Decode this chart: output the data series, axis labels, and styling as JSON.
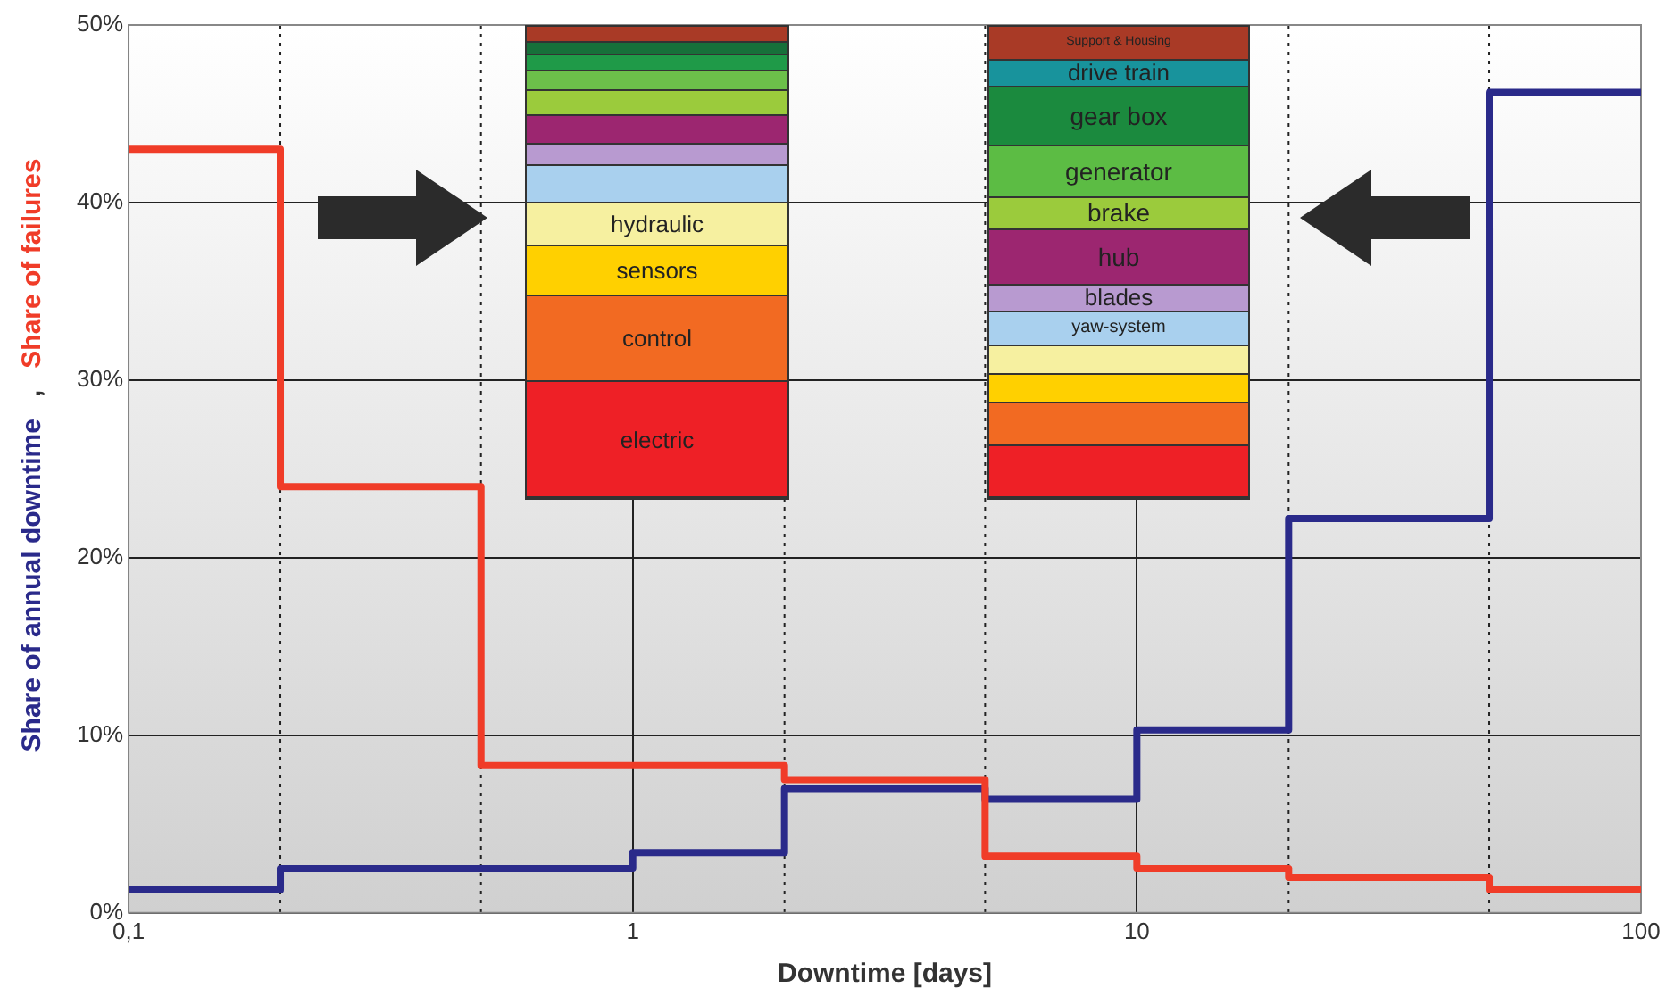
{
  "chart_data": {
    "type": "step",
    "xlabel": "Downtime [days]",
    "ylabel": ",",
    "x": [
      0.1,
      0.2,
      0.5,
      1,
      2,
      5,
      10,
      20,
      50,
      100
    ],
    "series": [
      {
        "name": "Share of failures",
        "color": "#f03c28",
        "values": [
          43,
          24,
          8.3,
          8.3,
          7.5,
          3.2,
          2.5,
          2.0,
          1.3,
          1.3
        ]
      },
      {
        "name": "Share of annual downtime",
        "color": "#2a2a8a",
        "values": [
          1.3,
          2.5,
          2.5,
          3.4,
          7.0,
          6.4,
          10.3,
          22.2,
          46.2,
          46.2
        ]
      }
    ],
    "log": "x",
    "xlim": [
      0.1,
      100
    ],
    "xticks": [
      {
        "value": 0.1,
        "label": "0,1"
      },
      1,
      10,
      100
    ],
    "ylim": [
      0,
      50
    ],
    "yticks": [
      {
        "value": 0,
        "label": "0%"
      },
      {
        "value": 10,
        "label": "10%"
      },
      {
        "value": 20,
        "label": "20%"
      },
      {
        "value": 30,
        "label": "30%"
      },
      {
        "value": 40,
        "label": "40%"
      },
      {
        "value": 50,
        "label": "50%"
      }
    ],
    "grid": true,
    "legend": "left",
    "ref_lines": [
      {
        "axis": "x",
        "value": 0.2,
        "line_style": "dotted"
      },
      {
        "axis": "x",
        "value": 0.5,
        "line_style": "dotted"
      },
      {
        "axis": "x",
        "value": 2,
        "line_style": "dotted"
      },
      {
        "axis": "x",
        "value": 5,
        "line_style": "dotted"
      },
      {
        "axis": "x",
        "value": 20,
        "line_style": "dotted"
      },
      {
        "axis": "x",
        "value": 50,
        "line_style": "dotted"
      }
    ],
    "annotations": [
      "hydraulic",
      "sensors",
      "control",
      "electric",
      "Support & Housing",
      "drive train",
      "gear box",
      "generator",
      "brake",
      "hub",
      "blades",
      "yaw-system"
    ]
  }
}
